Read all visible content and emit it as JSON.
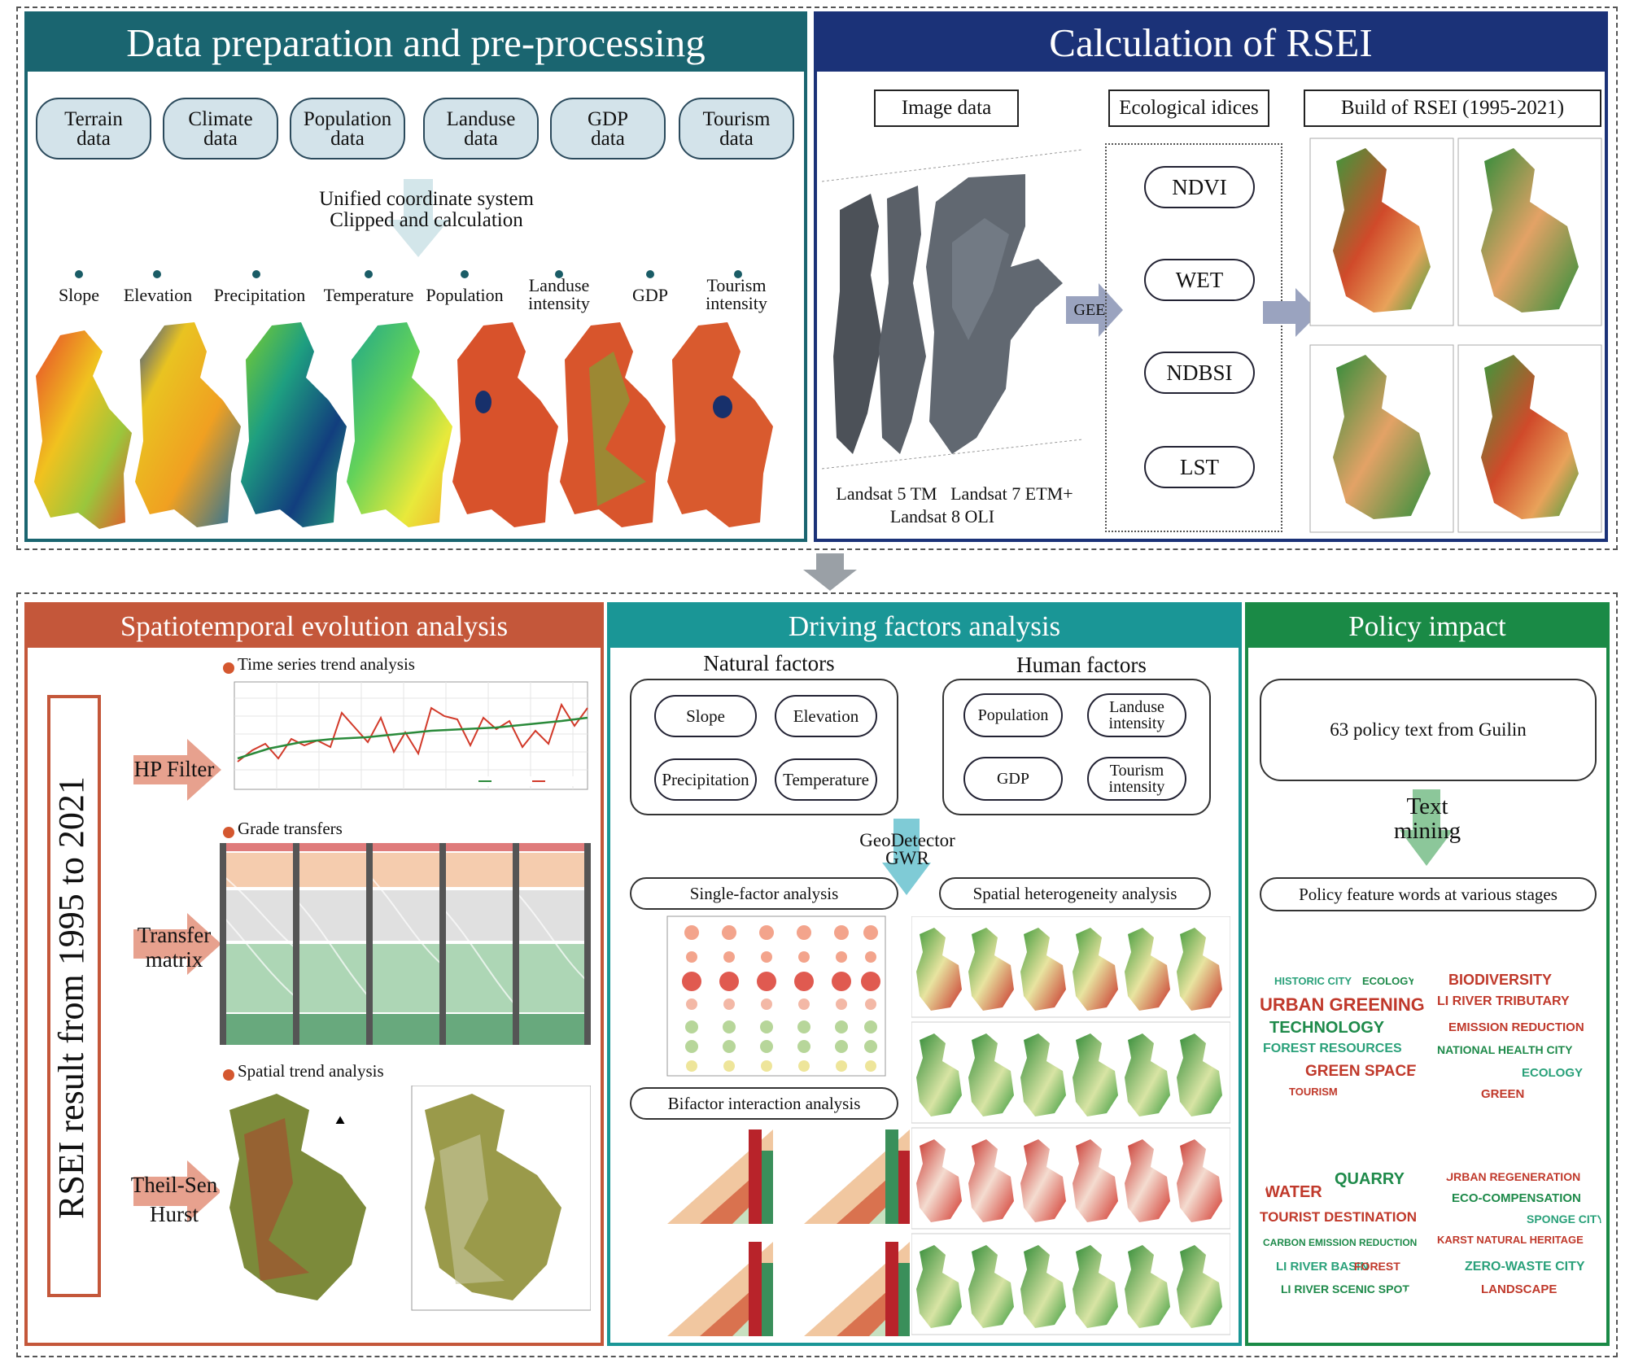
{
  "prep": {
    "title": "Data preparation and pre-processing",
    "header_color": "#1a6570",
    "data_sources": [
      {
        "line1": "Terrain",
        "line2": "data"
      },
      {
        "line1": "Climate",
        "line2": "data"
      },
      {
        "line1": "Population",
        "line2": "data"
      },
      {
        "line1": "Landuse",
        "line2": "data"
      },
      {
        "line1": "GDP",
        "line2": "data"
      },
      {
        "line1": "Tourism",
        "line2": "data"
      }
    ],
    "process_line1": "Unified coordinate system",
    "process_line2": "Clipped and calculation",
    "variables": [
      {
        "line1": "Slope",
        "line2": ""
      },
      {
        "line1": "Elevation",
        "line2": ""
      },
      {
        "line1": "Precipitation",
        "line2": ""
      },
      {
        "line1": "Temperature",
        "line2": ""
      },
      {
        "line1": "Population",
        "line2": ""
      },
      {
        "line1": "Landuse",
        "line2": "intensity"
      },
      {
        "line1": "GDP",
        "line2": ""
      },
      {
        "line1": "Tourism",
        "line2": "intensity"
      }
    ]
  },
  "rsei": {
    "title": "Calculation of RSEI",
    "header_color": "#1b3278",
    "image_data_label": "Image data",
    "eco_label": "Ecological idices",
    "build_label": "Build of RSEI (1995-2021)",
    "indices": [
      "NDVI",
      "WET",
      "NDBSI",
      "LST"
    ],
    "gee_label": "GEE",
    "sensor_line1": "Landsat 5 TM   Landsat 7 ETM+",
    "sensor_line2": "Landsat 8 OLI"
  },
  "spatio": {
    "title": "Spatiotemporal evolution analysis",
    "header_color": "#c4573a",
    "vertical_label": "RSEI result from 1995 to 2021",
    "time_series_title": "Time series trend analysis",
    "grade_title": "Grade transfers",
    "spatial_title": "Spatial trend analysis",
    "methods": [
      {
        "line1": "HP Filter",
        "line2": ""
      },
      {
        "line1": "Transfer",
        "line2": "matrix"
      },
      {
        "line1": "Theil-Sen",
        "line2": "Hurst"
      }
    ]
  },
  "driving": {
    "title": "Driving factors analysis",
    "header_color": "#1a9696",
    "natural_label": "Natural factors",
    "human_label": "Human factors",
    "natural_factors": [
      "Slope",
      "Elevation",
      "Precipitation",
      "Temperature"
    ],
    "human_factors": [
      {
        "line1": "Population",
        "line2": ""
      },
      {
        "line1": "Landuse",
        "line2": "intensity"
      },
      {
        "line1": "GDP",
        "line2": ""
      },
      {
        "line1": "Tourism",
        "line2": "intensity"
      }
    ],
    "tool_line1": "GeoDetector",
    "tool_line2": "GWR",
    "single_factor_label": "Single-factor analysis",
    "spatial_het_label": "Spatial heterogeneity analysis",
    "bifactor_label": "Bifactor interaction analysis"
  },
  "policy": {
    "title": "Policy impact",
    "header_color": "#1a8a46",
    "source_text": "63 policy text from Guilin",
    "method_line1": "Text",
    "method_line2": "mining",
    "feature_label": "Policy feature words at various stages",
    "clouds": [
      {
        "words": [
          "URBAN GREENING",
          "TECHNOLOGY",
          "FOREST RESOURCES",
          "GREEN SPACE",
          "HISTORIC CITY",
          "ECOLOGY",
          "TOURISM"
        ]
      },
      {
        "words": [
          "BIODIVERSITY",
          "LI RIVER TRIBUTARY",
          "EMISSION REDUCTION",
          "NATIONAL HEALTH CITY",
          "ECOLOGY",
          "GREEN"
        ]
      },
      {
        "words": [
          "WATER",
          "QUARRY",
          "TOURIST DESTINATION",
          "CARBON EMISSION REDUCTION",
          "LI RIVER BASIN",
          "LI RIVER SCENIC SPOT",
          "FOREST"
        ]
      },
      {
        "words": [
          "URBAN REGENERATION",
          "ECO-COMPENSATION",
          "SPONGE CITY",
          "KARST NATURAL HERITAGE",
          "ZERO-WASTE CITY",
          "LANDSCAPE"
        ]
      }
    ]
  }
}
